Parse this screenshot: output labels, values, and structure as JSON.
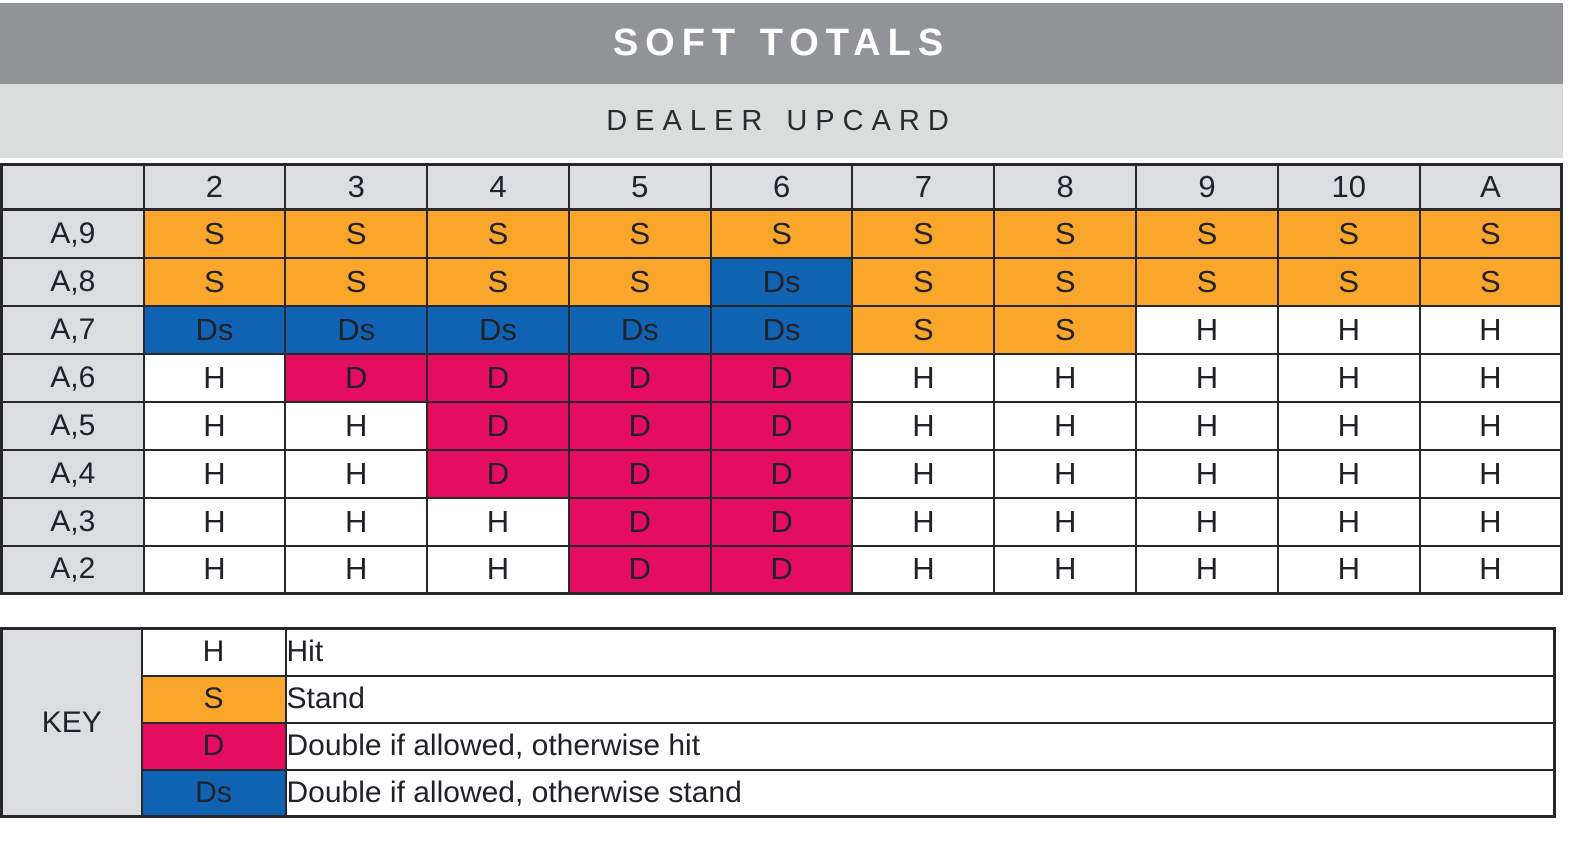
{
  "title": "SOFT TOTALS",
  "subtitle": "DEALER UPCARD",
  "chart_data": {
    "type": "table",
    "title": "SOFT TOTALS",
    "column_header": "DEALER UPCARD",
    "columns": [
      "2",
      "3",
      "4",
      "5",
      "6",
      "7",
      "8",
      "9",
      "10",
      "A"
    ],
    "rows": [
      {
        "label": "A,9",
        "cells": [
          "S",
          "S",
          "S",
          "S",
          "S",
          "S",
          "S",
          "S",
          "S",
          "S"
        ]
      },
      {
        "label": "A,8",
        "cells": [
          "S",
          "S",
          "S",
          "S",
          "Ds",
          "S",
          "S",
          "S",
          "S",
          "S"
        ]
      },
      {
        "label": "A,7",
        "cells": [
          "Ds",
          "Ds",
          "Ds",
          "Ds",
          "Ds",
          "S",
          "S",
          "H",
          "H",
          "H"
        ]
      },
      {
        "label": "A,6",
        "cells": [
          "H",
          "D",
          "D",
          "D",
          "D",
          "H",
          "H",
          "H",
          "H",
          "H"
        ]
      },
      {
        "label": "A,5",
        "cells": [
          "H",
          "H",
          "D",
          "D",
          "D",
          "H",
          "H",
          "H",
          "H",
          "H"
        ]
      },
      {
        "label": "A,4",
        "cells": [
          "H",
          "H",
          "D",
          "D",
          "D",
          "H",
          "H",
          "H",
          "H",
          "H"
        ]
      },
      {
        "label": "A,3",
        "cells": [
          "H",
          "H",
          "H",
          "D",
          "D",
          "H",
          "H",
          "H",
          "H",
          "H"
        ]
      },
      {
        "label": "A,2",
        "cells": [
          "H",
          "H",
          "H",
          "D",
          "D",
          "H",
          "H",
          "H",
          "H",
          "H"
        ]
      }
    ]
  },
  "key": {
    "label": "KEY",
    "entries": [
      {
        "code": "H",
        "description": "Hit"
      },
      {
        "code": "S",
        "description": "Stand"
      },
      {
        "code": "D",
        "description": "Double if allowed, otherwise hit"
      },
      {
        "code": "Ds",
        "description": "Double if allowed, otherwise stand"
      }
    ]
  },
  "colors": {
    "action_H": "#FFFFFF",
    "action_S": "#F9A62B",
    "action_D": "#E40D5E",
    "action_Ds": "#0F63B2",
    "title_bar_bg": "#919396",
    "subtitle_bar_bg": "#DBDCDC",
    "header_cell_bg": "#DCDDE1",
    "border": "#28282C",
    "text_dark": "#212227",
    "title_text": "#FFFFFF"
  }
}
